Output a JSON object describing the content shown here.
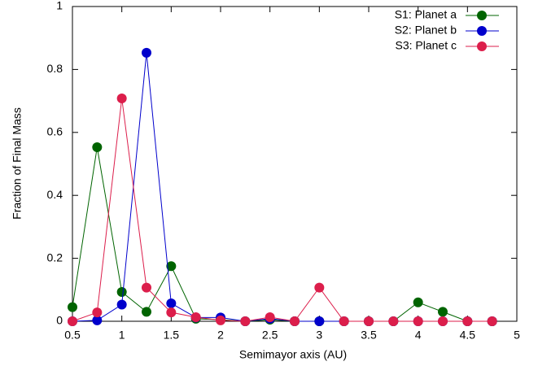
{
  "chart_data": {
    "type": "line",
    "x_label": "Semimayor axis (AU)",
    "y_label": "Fraction of Final Mass",
    "x": [
      0.5,
      0.75,
      1.0,
      1.25,
      1.5,
      1.75,
      2.0,
      2.25,
      2.5,
      2.75,
      3.0,
      3.25,
      3.5,
      3.75,
      4.0,
      4.25,
      4.5,
      4.75
    ],
    "series": [
      {
        "name": "S1: Planet a",
        "color": "#006400",
        "values": [
          0.045,
          0.553,
          0.093,
          0.03,
          0.175,
          0.008,
          0.005,
          0,
          0.005,
          0,
          0,
          0,
          0,
          0,
          0.06,
          0.03,
          0,
          0
        ]
      },
      {
        "name": "S2: Planet b",
        "color": "#0000cc",
        "values": [
          0,
          0.003,
          0.053,
          0.853,
          0.057,
          0.012,
          0.012,
          0,
          0.008,
          0,
          0,
          0,
          0,
          0,
          0,
          0,
          0,
          0
        ]
      },
      {
        "name": "S3: Planet c",
        "color": "#dc1e4b",
        "values": [
          0,
          0.028,
          0.708,
          0.107,
          0.028,
          0.013,
          0.003,
          0,
          0.013,
          0,
          0.107,
          0,
          0,
          0,
          0,
          0,
          0,
          0
        ]
      }
    ],
    "xlim": [
      0.5,
      5
    ],
    "xticks": [
      0.5,
      1,
      1.5,
      2,
      2.5,
      3,
      3.5,
      4,
      4.5,
      5
    ],
    "ylim": [
      0,
      1
    ],
    "yticks": [
      0,
      0.2,
      0.4,
      0.6,
      0.8,
      1
    ],
    "legend": "top-right"
  }
}
